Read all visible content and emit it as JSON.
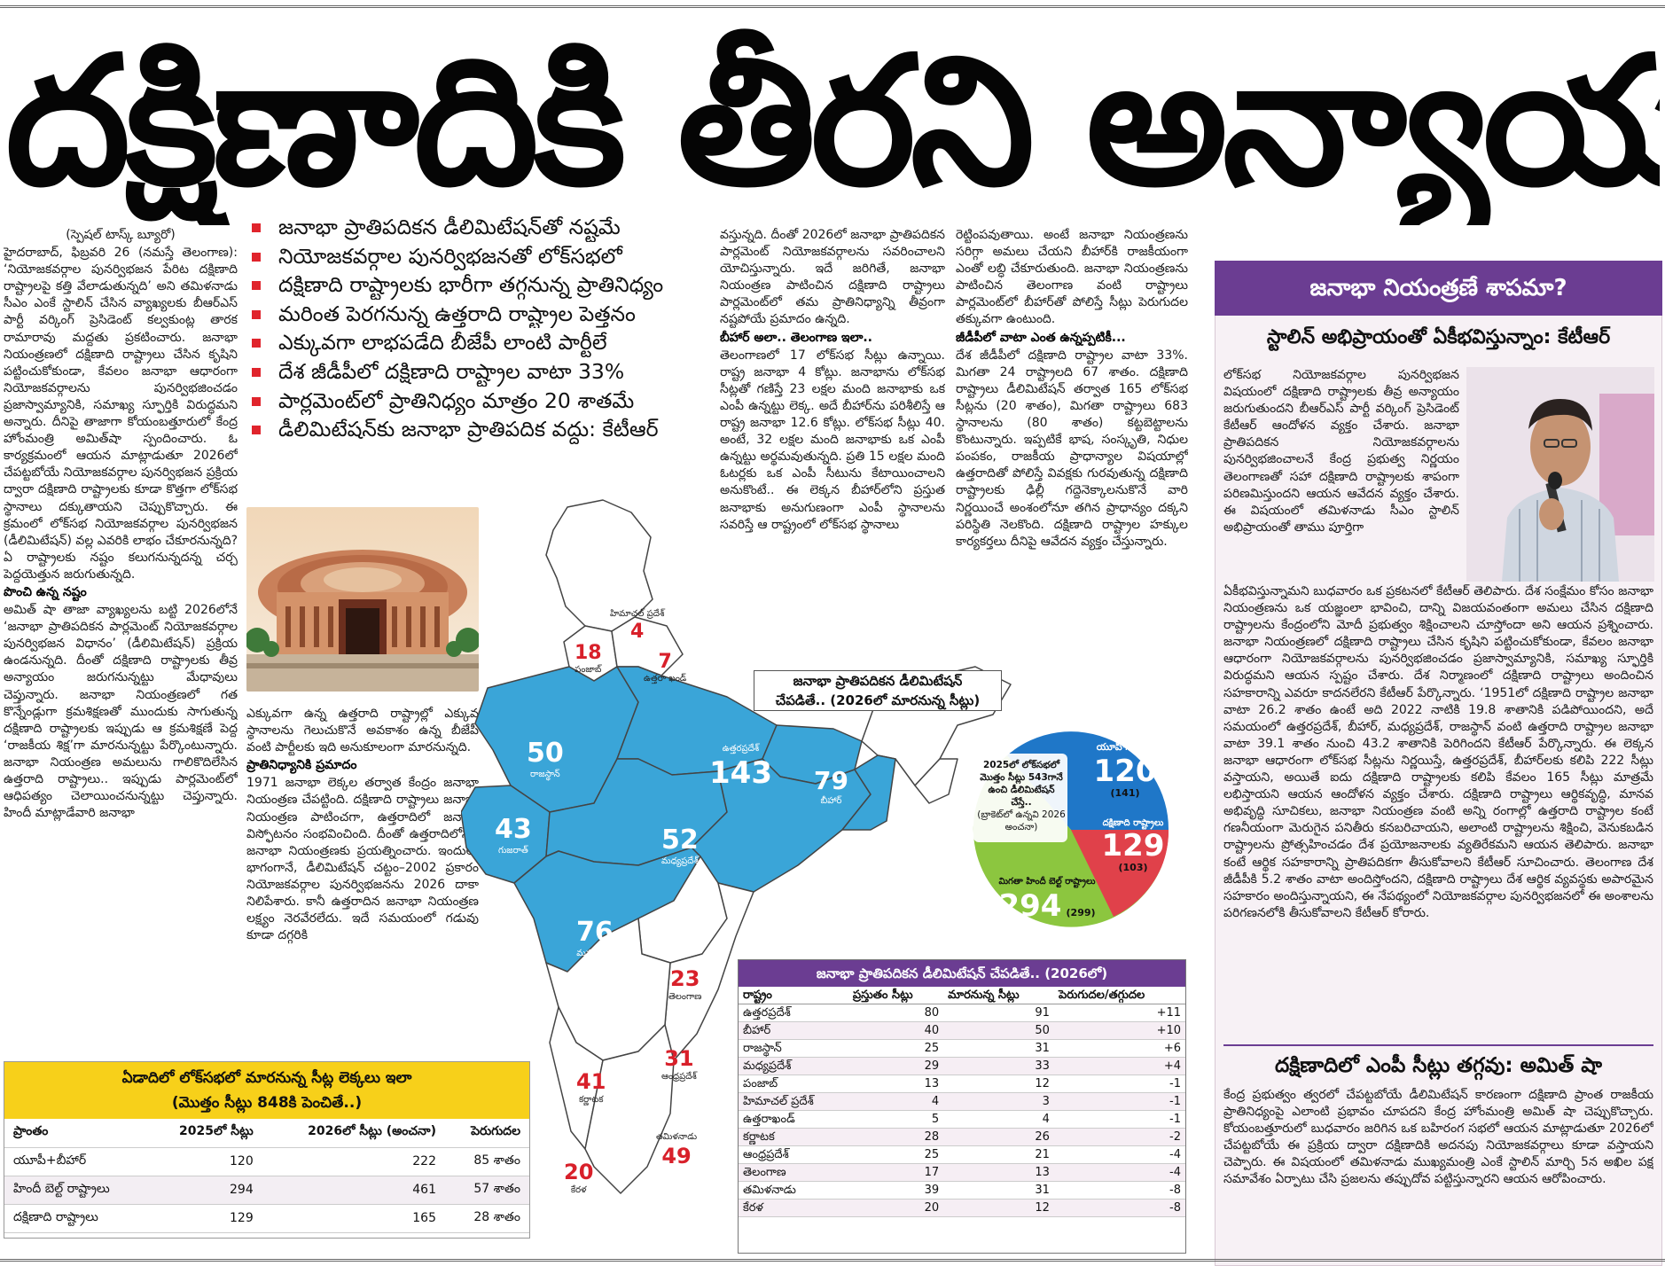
{
  "headline": "దక్షిణాదికి తీరని అన్యాయం!",
  "bullets": [
    "జనాభా ప్రాతిపదికన డీలిమిటేషన్‌తో నష్టమే",
    "నియోజకవర్గాల పునర్విభజనతో లోక్‌సభలో",
    "దక్షిణాది రాష్ట్రాలకు భారీగా తగ్గనున్న ప్రాతినిధ్యం",
    "మరింత పెరగనున్న ఉత్తరాది రాష్ట్రాల పెత్తనం",
    "ఎక్కువగా లాభపడేది బీజేపీ లాంటి పార్టీలే",
    "దేశ జీడీపీలో దక్షిణాది రాష్ట్రాల వాటా 33%",
    "పార్లమెంట్‌లో ప్రాతినిధ్యం మాత్రం 20 శాతమే",
    "డీలిమిటేషన్‌కు జనాభా ప్రాతిపదిక వద్దు: కేటీఆర్"
  ],
  "col1": {
    "byline": "(స్పెషల్ టాస్క్ బ్యూరో)",
    "p1": "హైదరాబాద్, ఫిబ్రవరి 26 (నమస్తే తెలంగాణ): ‘నియోజకవర్గాల పునర్విభజన పేరిట దక్షిణాది రాష్ట్రాలపై కత్తి వేలాడుతున్నది’ అని తమిళనాడు సీఎం ఎంకే స్టాలిన్ చేసిన వ్యాఖ్యలకు బీఆర్‌ఎస్ పార్టీ వర్కింగ్ ప్రెసిడెంట్ కల్వకుంట్ల తారక రామారావు మద్దతు ప్రకటించారు. జనాభా నియంత్రణలో దక్షిణాది రాష్ట్రాలు చేసిన కృషిని పట్టించుకోకుండా, కేవలం జనాభా ఆధారంగా నియోజకవర్గాలను పునర్విభజించడం ప్రజాస్వామ్యానికి, సమాఖ్య స్ఫూర్తికి విరుద్ధమని అన్నారు. దీనిపై తాజాగా కోయంబత్తూరులో కేంద్ర హోంమంత్రి అమిత్‌షా స్పందించారు. ఓ కార్యక్రమంలో ఆయన మాట్లాడుతూ 2026లో చేపట్టబోయే నియోజకవర్గాల పునర్విభజన ప్రక్రియ ద్వారా దక్షిణాది రాష్ట్రాలకు కూడా కొత్తగా లోక్‌సభ స్థానాలు దక్కుతాయని చెప్పుకొచ్చారు. ఈ క్రమంలో లోక్‌సభ నియోజకవర్గాల పునర్విభజన (డీలిమిటేషన్) వల్ల ఎవరికి లాభం చేకూరనున్నది? ఏ రాష్ట్రాలకు నష్టం కలుగనున్నదన్న చర్చ పెద్దయెత్తున జరుగుతున్నది.",
    "sub1": "పొంచి ఉన్న నష్టం",
    "p2": "అమిత్ షా తాజా వ్యాఖ్యలను బట్టి 2026లోనే ‘జనాభా ప్రాతిపదికన పార్లమెంట్ నియోజకవర్గాల పునర్విభజన విధానం’ (డీలిమిటేషన్) ప్రక్రియ ఉండనున్నది. దీంతో దక్షిణాది రాష్ట్రాలకు తీవ్ర అన్యాయం జరుగనున్నట్టు మేధావులు చెప్తున్నారు. జనాభా నియంత్రణలో గత కొన్నేండ్లుగా క్రమశిక్షణతో ముందుకు సాగుతున్న దక్షిణాది రాష్ట్రాలకు ఇప్పుడు ఆ క్రమశిక్షణే పెద్ద ‘రాజకీయ శిక్ష’గా మారనున్నట్టు పేర్కొంటున్నారు. జనాభా నియంత్రణ అమలును గాలికొదిలేసిన ఉత్తరాది రాష్ట్రాలు.. ఇప్పుడు పార్లమెంట్‌లో ఆధిపత్యం చెలాయించనున్నట్టు చెప్తున్నారు. హిందీ మాట్లాడేవారి జనాభా"
  },
  "col2": {
    "p1": "ఎక్కువగా ఉన్న ఉత్తరాది రాష్ట్రాల్లో ఎక్కువ స్థానాలను గెలుచుకొనే అవకాశం ఉన్న బీజేపీ వంటి పార్టీలకు ఇది అనుకూలంగా మారనున్నది.",
    "sub1": "ప్రాతినిధ్యానికి ప్రమాదం",
    "p2": "1971 జనాభా లెక్కల తర్వాత కేంద్రం జనాభా నియంత్రణ చేపట్టింది. దక్షిణాది రాష్ట్రాలు జనాభా నియంత్రణ పాటించగా, ఉత్తరాదిలో జనాభా విస్ఫోటనం సంభవించింది. దీంతో ఉత్తరాదిలోనూ జనాభా నియంత్రణకు ప్రయత్నించారు. ఇందులో భాగంగానే, డీలిమిటేషన్ చట్టం–2002 ప్రకారం నియోజకవర్గాల పునర్విభజనను 2026 దాకా నిలిపేశారు. కానీ ఉత్తరాదిన జనాభా నియంత్రణ లక్ష్యం నెరవేరలేదు. ఇదే సమయంలో గడువు కూడా దగ్గరికి"
  },
  "col3": {
    "p1": "వస్తున్నది. దీంతో 2026లో జనాభా ప్రాతిపదికన పార్లమెంట్ నియోజకవర్గాలను సవరించాలని యోచిస్తున్నారు. ఇదే జరిగితే, జనాభా నియంత్రణ పాటించిన దక్షిణాది రాష్ట్రాలు పార్లమెంట్‌లో తమ ప్రాతినిధ్యాన్ని తీవ్రంగా నష్టపోయే ప్రమాదం ఉన్నది.",
    "sub1": "బీహార్ అలా.. తెలంగాణ ఇలా..",
    "p2": "తెలంగాణలో 17 లోక్‌సభ సీట్లు ఉన్నాయి. రాష్ట్ర జనాభా 4 కోట్లు. జనాభాను లోక్‌సభ సీట్లతో గణిస్తే 23 లక్షల మంది జనాభాకు ఒక ఎంపీ ఉన్నట్టు లెక్క. అదే బీహార్‌ను పరిశీలిస్తే ఆ రాష్ట్ర జనాభా 12.6 కోట్లు. లోక్‌సభ సీట్లు 40. అంటే, 32 లక్షల మంది జనాభాకు ఒక ఎంపీ ఉన్నట్టు అర్థమవుతున్నది. ప్రతి 15 లక్షల మంది ఓటర్లకు ఒక ఎంపీ సీటును కేటాయించాలని అనుకొంటే.. ఈ లెక్కన బీహార్‌లోని ప్రస్తుత జనాభాకు అనుగుణంగా ఎంపీ స్థానాలను సవరిస్తే ఆ రాష్ట్రంలో లోక్‌సభ స్థానాలు"
  },
  "col4": {
    "p1": "రెట్టింపవుతాయి. అంటే జనాభా నియంత్రణను సరిగ్గా అమలు చేయని బీహార్‌కి రాజకీయంగా ఎంతో లబ్ధి చేకూరుతుంది. జనాభా నియంత్రణను పాటించిన తెలంగాణ వంటి రాష్ట్రాలు పార్లమెంట్‌లో బీహార్‌తో పోలిస్తే సీట్లు పెరుగుదల తక్కువగా ఉంటుంది.",
    "sub1": "జీడీపీలో వాటా ఎంత ఉన్నప్పటికీ...",
    "p2": "దేశ జీడీపీలో దక్షిణాది రాష్ట్రాల వాటా 33%. మిగతా 24 రాష్ట్రాలది 67 శాతం. దక్షిణాది రాష్ట్రాలు డీలిమిటేషన్ తర్వాత 165 లోక్‌సభ సీట్లను (20 శాతం), మిగతా రాష్ట్రాలు 683 స్థానాలను (80 శాతం) కట్టబెట్టాలను కొంటున్నారు. ఇప్పటికే భాష, సంస్కృతి, నిధుల పంపకం, రాజకీయ ప్రాధాన్యాల విషయాల్లో ఉత్తరాదితో పోలిస్తే వివక్షకు గురవుతున్న దక్షిణాది రాష్ట్రాలకు ఢిల్లీ గద్దెనెక్కాలనుకొనే వారి నిర్ణయించే అంశంలోనూ తగిన ప్రాధాన్యం దక్కని పరిస్థితి నెలకొంది. దక్షిణాది రాష్ట్రాల హక్కుల కార్యకర్తలు దీనిపై ఆవేదన వ్యక్తం చేస్తున్నారు."
  },
  "sidebar": {
    "header": "జనాభా నియంత్రణే శాపమా?",
    "subheader": "స్టాలిన్ అభిప్రాయంతో ఏకీభవిస్తున్నాం: కేటీఆర్",
    "body_top": "లోక్‌సభ నియోజకవర్గాల పునర్విభజన విషయంలో దక్షిణాది రాష్ట్రాలకు తీవ్ర అన్యాయం జరుగుతుందని బీఆర్‌ఎస్ పార్టీ వర్కింగ్ ప్రెసిడెంట్ కేటీఆర్ ఆందోళన వ్యక్తం చేశారు. జనాభా ప్రాతిపదికన నియోజకవర్గాలను పునర్విభజించాలనే కేంద్ర ప్రభుత్వ నిర్ణయం తెలంగాణతో సహా దక్షిణాది రాష్ట్రాలకు శాపంగా పరిణమిస్తుందని ఆయన ఆవేదన వ్యక్తం చేశారు. ఈ విషయంలో తమిళనాడు సీఎం స్టాలిన్ అభిప్రాయంతో తాము పూర్తిగా",
    "body_bottom": "ఏకీభవిస్తున్నామని బుధవారం ఒక ప్రకటనలో కేటీఆర్ తెలిపారు. దేశ సంక్షేమం కోసం జనాభా నియంత్రణను ఒక యజ్ఞంలా భావించి, దాన్ని విజయవంతంగా అమలు చేసిన దక్షిణాది రాష్ట్రాలను కేంద్రంలోని మోదీ ప్రభుత్వం శిక్షించాలని చూస్తోందా అని ఆయన ప్రశ్నించారు. జనాభా నియంత్రణలో దక్షిణాది రాష్ట్రాలు చేసిన కృషిని పట్టించుకోకుండా, కేవలం జనాభా ఆధారంగా నియోజకవర్గాలను పునర్విభజించడం ప్రజాస్వామ్యానికి, సమాఖ్య స్ఫూర్తికి విరుద్ధమని ఆయన స్పష్టం చేశారు. దేశ నిర్మాణంలో దక్షిణాది రాష్ట్రాలు అందించిన సహకారాన్ని ఎవరూ కాదనలేరని కేటీఆర్ పేర్కొన్నారు. ‘1951లో దక్షిణాది రాష్ట్రాల జనాభా వాటా 26.2 శాతం ఉంటే అది 2022 నాటికి 19.8 శాతానికి పడిపోయిందని, అదే సమయంలో ఉత్తరప్రదేశ్, బీహార్, మధ్యప్రదేశ్, రాజస్థాన్ వంటి ఉత్తరాది రాష్ట్రాల జనాభా వాటా 39.1 శాతం నుంచి 43.2 శాతానికి పెరిగిందని కేటీఆర్ పేర్కొన్నారు. ఈ లెక్కన జనాభా ఆధారంగా లోక్‌సభ సీట్లను నిర్ణయిస్తే, ఉత్తరప్రదేశ్, బీహార్‌లకు కలిపి 222 సీట్లు వస్తాయని, అయితే ఐదు దక్షిణాది రాష్ట్రాలకు కలిపి కేవలం 165 సీట్లు మాత్రమే లభిస్తాయని ఆయన ఆందోళన వ్యక్తం చేశారు. దక్షిణాది రాష్ట్రాలు ఆర్థికవృద్ధి, మానవ అభివృద్ధి సూచికలు, జనాభా నియంత్రణ వంటి అన్ని రంగాల్లో ఉత్తరాది రాష్ట్రాల కంటే గణనీయంగా మెరుగైన పనితీరు కనబరిచాయని, అలాంటి రాష్ట్రాలను శిక్షించి, వెనుకబడిన రాష్ట్రాలను ప్రోత్సహించడం దేశ ప్రయోజనాలకు వ్యతిరేకమని ఆయన తెలిపారు. జనాభా కంటే ఆర్థిక సహకారాన్ని ప్రాతిపదికగా తీసుకోవాలని కేటీఆర్ సూచించారు. తెలంగాణ దేశ జీడీపీకి 5.2 శాతం వాటా అందిస్తోందని, దక్షిణాది రాష్ట్రాలు దేశ ఆర్థిక వ్యవస్థకు అపారమైన సహకారం అందిస్తున్నాయని, ఈ నేపథ్యంలో నియోజకవర్గాల పునర్విభజనలో ఈ అంశాలను పరిగణనలోకి తీసుకోవాలని కేటీఆర్ కోరారు.",
    "amit_header": "దక్షిణాదిలో ఎంపీ సీట్లు తగ్గవు: అమిత్ షా",
    "amit_body": "కేంద్ర ప్రభుత్వం త్వరలో చేపట్టబోయే డీలిమిటేషన్ కారణంగా దక్షిణాది ప్రాంత రాజకీయ ప్రాతినిధ్యంపై ఎలాంటి ప్రభావం చూపదని కేంద్ర హోంమంత్రి అమిత్ షా చెప్పుకొచ్చారు. కోయంబత్తూరులో బుధవారం జరిగిన ఒక బహిరంగ సభలో ఆయన మాట్లాడుతూ 2026లో చేపట్టబోయే ఈ ప్రక్రియ ద్వారా దక్షిణాదికి అదనపు నియోజకవర్గాలు కూడా వస్తాయని చెప్పారు. ఈ విషయంలో తమిళనాడు ముఖ్యమంత్రి ఎంకే స్టాలిన్ మార్చి 5న అఖిల పక్ష సమావేశం ఏర్పాటు చేసి ప్రజలను తప్పుదోవ పట్టిస్తున్నారని ఆయన ఆరోపించారు."
  },
  "map": {
    "title_line1": "జనాభా ప్రాతిపదికన డీలిమిటేషన్",
    "title_line2": "చేపడితే.. (2026లో మారనున్న సీట్లు)",
    "labels": [
      {
        "state": "రాజస్థాన్",
        "seats": "50"
      },
      {
        "state": "ఉత్తరప్రదేశ్",
        "seats": "143"
      },
      {
        "state": "బీహార్",
        "seats": "79"
      },
      {
        "state": "గుజరాత్",
        "seats": "43"
      },
      {
        "state": "మధ్యప్రదేశ్",
        "seats": "52"
      },
      {
        "state": "మహారాష్ట్ర",
        "seats": "76"
      },
      {
        "state": "పంజాబ్",
        "seats": "18"
      },
      {
        "state": "హిమాచల్ ప్రదేశ్",
        "seats": "4"
      },
      {
        "state": "ఉత్తరా ఖండ్",
        "seats": "7"
      },
      {
        "state": "తెలంగాణ",
        "seats": "23"
      },
      {
        "state": "ఆంధ్రప్రదేశ్",
        "seats": "31"
      },
      {
        "state": "కర్ణాటక",
        "seats": "41"
      },
      {
        "state": "తమిళనాడు",
        "seats": "49"
      },
      {
        "state": "కేరళ",
        "seats": "20"
      }
    ]
  },
  "pie": {
    "center_text": "2025లో లోక్‌సభలో మొత్తం సీట్లు 543గానే ఉంచి డీలిమిటేషన్ చేస్తే..",
    "center_note": "(బ్రాకెట్‌లో ఉన్నవి 2026 అంచనా)",
    "up_label": "యూపీ+బీహార్",
    "up_value": "120",
    "up_new": "(141)",
    "south_label": "దక్షిణాది రాష్ట్రాలు",
    "south_value": "129",
    "south_new": "(103)",
    "hindi_label": "మిగతా హిందీ బెల్ట్ రాష్ట్రాలు",
    "hindi_value": "294",
    "hindi_new": "(299)",
    "colors": {
      "up": "#1f77c8",
      "south": "#e0414a",
      "hindi": "#8cc63f"
    }
  },
  "seats_table": {
    "title": "జనాభా ప్రాతిపదికన డీలిమిటేషన్ చేపడితే.. (2026లో)",
    "headers": [
      "రాష్ట్రం",
      "ప్రస్తుతం సీట్లు",
      "మారనున్న సీట్లు",
      "పెరుగుదల/తగ్గుదల"
    ],
    "rows": [
      [
        "ఉత్తరప్రదేశ్",
        "80",
        "91",
        "+11"
      ],
      [
        "బీహార్",
        "40",
        "50",
        "+10"
      ],
      [
        "రాజస్థాన్",
        "25",
        "31",
        "+6"
      ],
      [
        "మధ్యప్రదేశ్",
        "29",
        "33",
        "+4"
      ],
      [
        "పంజాబ్",
        "13",
        "12",
        "-1"
      ],
      [
        "హిమాచల్ ప్రదేశ్",
        "4",
        "3",
        "-1"
      ],
      [
        "ఉత్తరాఖండ్",
        "5",
        "4",
        "-1"
      ],
      [
        "కర్ణాటక",
        "28",
        "26",
        "-2"
      ],
      [
        "ఆంధ్రప్రదేశ్",
        "25",
        "21",
        "-4"
      ],
      [
        "తెలంగాణ",
        "17",
        "13",
        "-4"
      ],
      [
        "తమిళనాడు",
        "39",
        "31",
        "-8"
      ],
      [
        "కేరళ",
        "20",
        "12",
        "-8"
      ]
    ]
  },
  "decade_table": {
    "title_line1": "ఏడాదిలో లోక్‌సభలో మారనున్న సీట్ల లెక్కలు ఇలా",
    "title_line2": "(మొత్తం సీట్లు 848కి పెంచితే..)",
    "headers": [
      "ప్రాంతం",
      "2025లో సీట్లు",
      "2026లో సీట్లు (అంచనా)",
      "పెరుగుదల"
    ],
    "rows": [
      [
        "యూపీ+బీహార్",
        "120",
        "222",
        "85 శాతం"
      ],
      [
        "హిందీ బెల్ట్ రాష్ట్రాలు",
        "294",
        "461",
        "57 శాతం"
      ],
      [
        "దక్షిణాది రాష్ట్రాలు",
        "129",
        "165",
        "28 శాతం"
      ]
    ]
  }
}
